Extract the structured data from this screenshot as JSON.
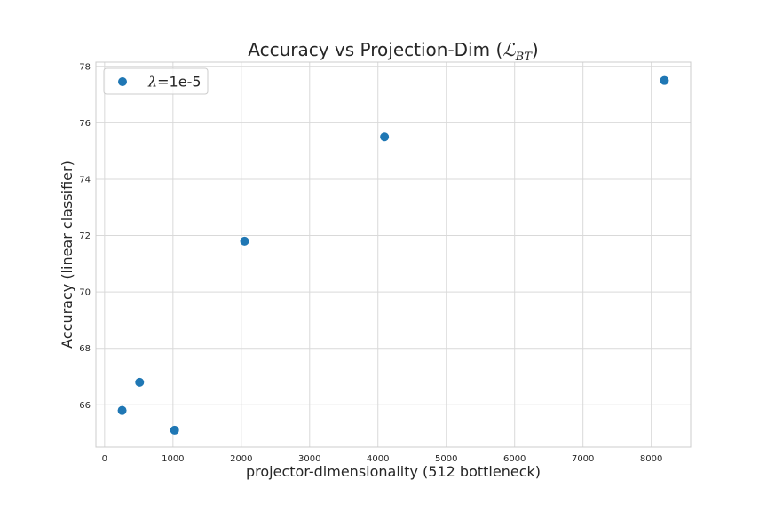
{
  "chart_data": {
    "type": "scatter",
    "title": {
      "prefix": "Accuracy vs Projection-Dim (",
      "math_main": "ℒ",
      "math_sub": "BT",
      "suffix": ")"
    },
    "xlabel": "projector-dimensionality (512 bottleneck)",
    "ylabel": "Accuracy (linear classifier)",
    "xlim": [
      -128,
      8576
    ],
    "ylim": [
      64.5,
      78.15
    ],
    "xticks": [
      0,
      1000,
      2000,
      3000,
      4000,
      5000,
      6000,
      7000,
      8000
    ],
    "yticks": [
      66,
      68,
      70,
      72,
      74,
      76,
      78
    ],
    "grid": true,
    "legend_position": "top-left",
    "series": [
      {
        "name": "λ=1e-5",
        "legend_symbol": "λ",
        "legend_value": "=1e-5",
        "color": "#1f77b4",
        "x": [
          256,
          512,
          1024,
          2048,
          4096,
          8192
        ],
        "y": [
          65.8,
          66.8,
          65.1,
          71.8,
          75.5,
          77.5
        ]
      }
    ]
  }
}
